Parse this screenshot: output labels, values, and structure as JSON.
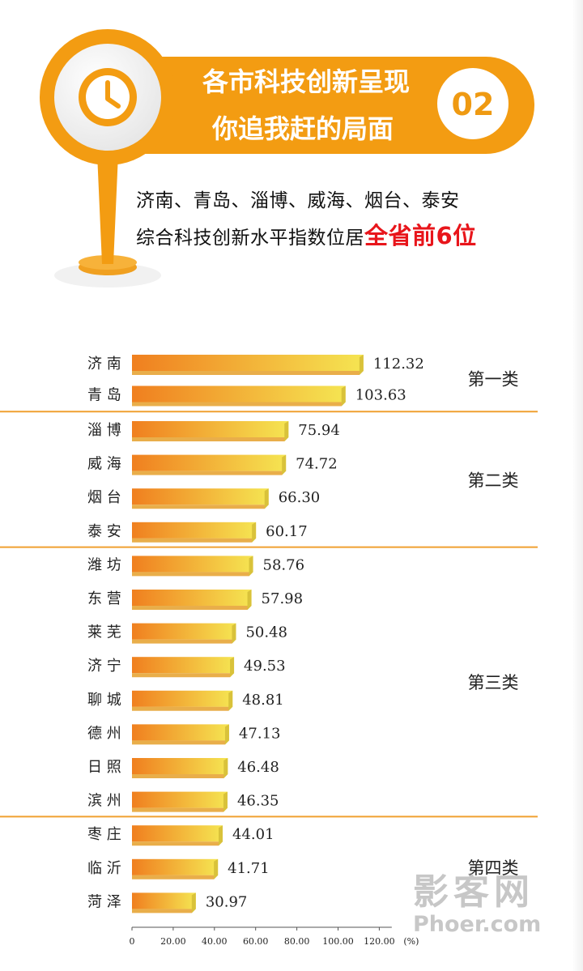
{
  "header": {
    "title_line1": "各市科技创新呈现",
    "title_line2": "你追我赶的局面",
    "badge": "02",
    "icon": "clock-icon",
    "subtitle_line1": "济南、青岛、淄博、威海、烟台、泰安",
    "subtitle_line2_prefix": "综合科技创新水平指数位居",
    "subtitle_line2_highlight": "全省前6位",
    "colors": {
      "accent": "#f39c12",
      "highlight": "#e8151b"
    }
  },
  "chart_data": {
    "type": "bar",
    "orientation": "horizontal",
    "categories": [
      "济 南",
      "青 岛",
      "淄 博",
      "威 海",
      "烟 台",
      "泰 安",
      "潍 坊",
      "东 营",
      "莱 芜",
      "济 宁",
      "聊 城",
      "德 州",
      "日 照",
      "滨 州",
      "枣 庄",
      "临 沂",
      "菏 泽"
    ],
    "values": [
      112.32,
      103.63,
      75.94,
      74.72,
      66.3,
      60.17,
      58.76,
      57.98,
      50.48,
      49.53,
      48.81,
      47.13,
      46.48,
      46.35,
      44.01,
      41.71,
      30.97
    ],
    "value_labels": [
      "112.32",
      "103.63",
      "75.94",
      "74.72",
      "66.30",
      "60.17",
      "58.76",
      "57.98",
      "50.48",
      "49.53",
      "48.81",
      "47.13",
      "46.48",
      "46.35",
      "44.01",
      "41.71",
      "30.97"
    ],
    "groups": [
      {
        "label": "第一类",
        "start": 0,
        "end": 1
      },
      {
        "label": "第二类",
        "start": 2,
        "end": 5
      },
      {
        "label": "第三类",
        "start": 6,
        "end": 13
      },
      {
        "label": "第四类",
        "start": 14,
        "end": 16
      }
    ],
    "xlim": [
      0,
      130
    ],
    "ticks": [
      0,
      20,
      40,
      60,
      80,
      100,
      120
    ],
    "tick_labels": [
      "0",
      "20.00",
      "40.00",
      "60.00",
      "80.00",
      "100.00",
      "120.00"
    ],
    "unit_label": "(%)",
    "colors": {
      "bar_start": "#f07f1f",
      "bar_end": "#f5e552",
      "divider": "#f0a030"
    }
  },
  "watermark": {
    "cn": "影客网",
    "en": "Phoer.com"
  }
}
